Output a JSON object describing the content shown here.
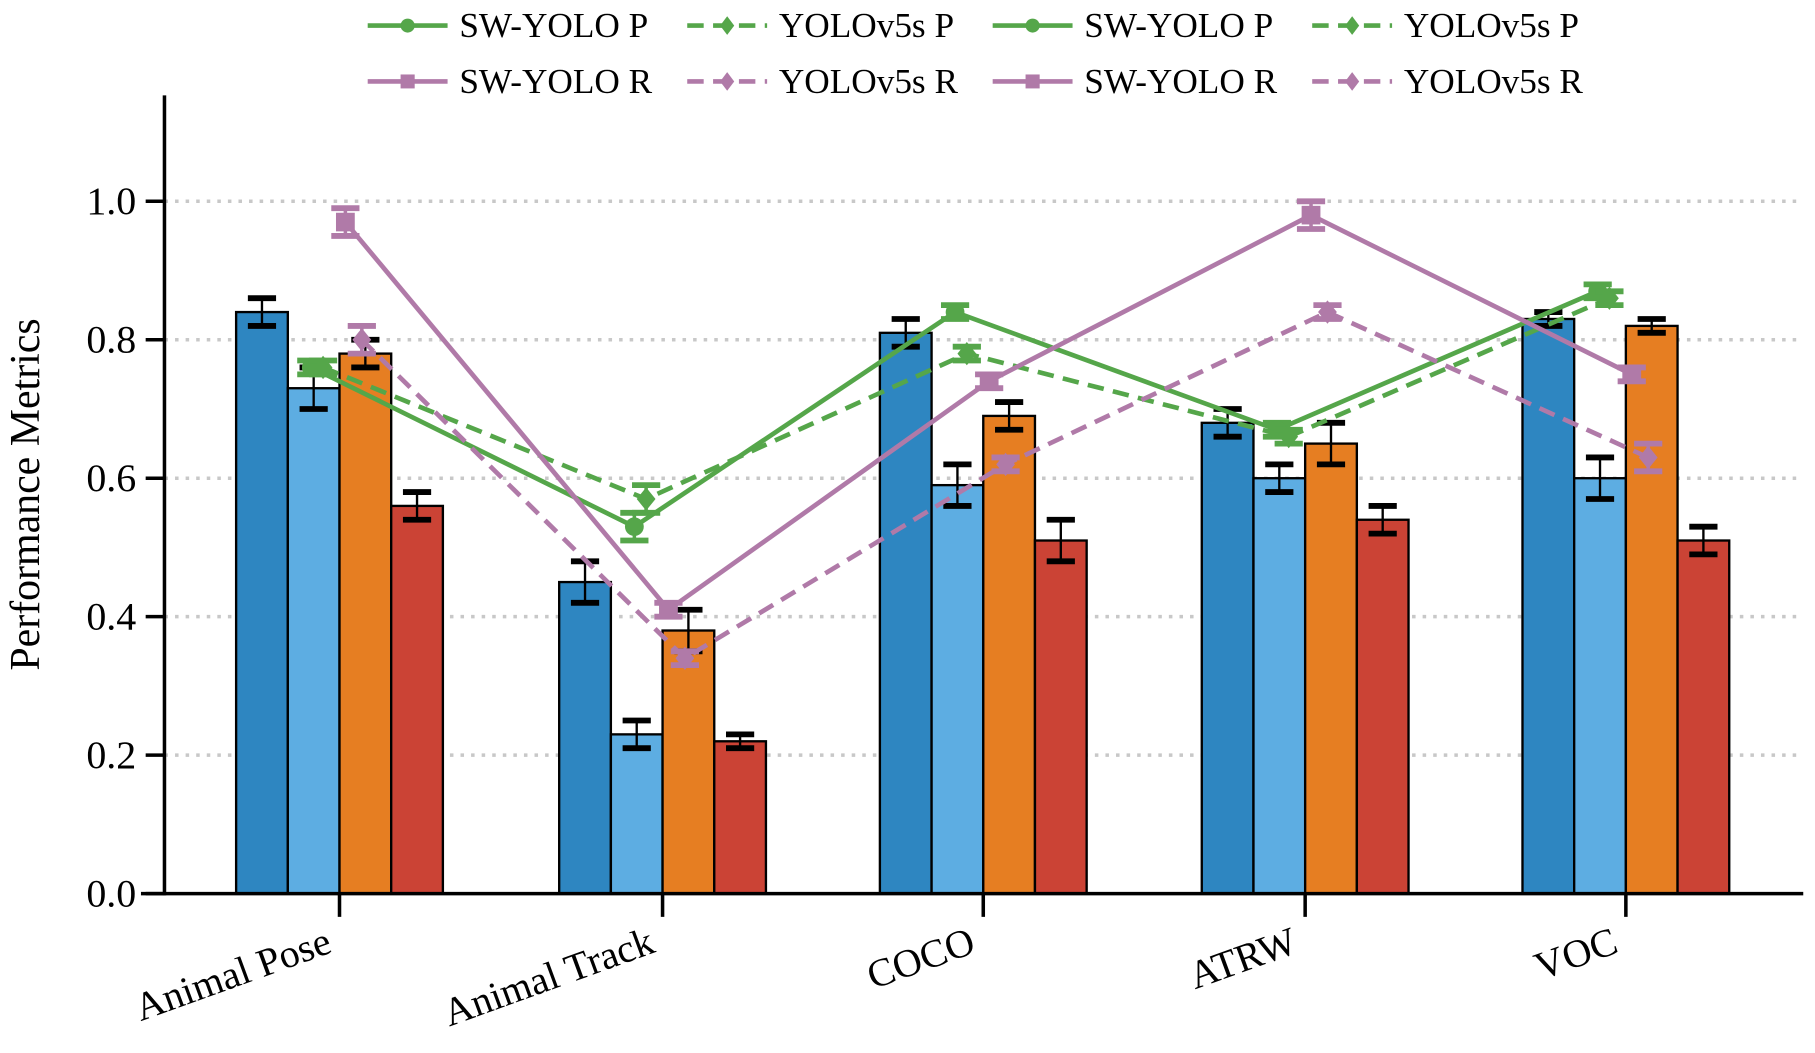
{
  "chart_data": {
    "type": "bar",
    "title": "",
    "xlabel": "",
    "ylabel": "Performance Metrics",
    "ylim": [
      0,
      1.1
    ],
    "yticks": [
      "0.0",
      "0.2",
      "0.4",
      "0.6",
      "0.8",
      "1.0"
    ],
    "grid": "horizontal dotted",
    "legend_placement": "top",
    "categories": [
      "Animal Pose",
      "Animal Track",
      "COCO",
      "ATRW",
      "VOC"
    ],
    "bar_series": [
      {
        "color": "#2e86c1",
        "values": [
          0.84,
          0.45,
          0.81,
          0.68,
          0.83
        ],
        "errors": [
          0.02,
          0.03,
          0.02,
          0.02,
          0.01
        ]
      },
      {
        "color": "#5dade2",
        "values": [
          0.73,
          0.23,
          0.59,
          0.6,
          0.6
        ],
        "errors": [
          0.03,
          0.02,
          0.03,
          0.02,
          0.03
        ]
      },
      {
        "color": "#e67e22",
        "values": [
          0.78,
          0.38,
          0.69,
          0.65,
          0.82
        ],
        "errors": [
          0.02,
          0.03,
          0.02,
          0.03,
          0.01
        ]
      },
      {
        "color": "#cb4335",
        "values": [
          0.56,
          0.22,
          0.51,
          0.54,
          0.51
        ],
        "errors": [
          0.02,
          0.01,
          0.03,
          0.02,
          0.02
        ]
      }
    ],
    "line_series": [
      {
        "name": "SW-YOLO P",
        "color": "#55a64a",
        "dash": false,
        "marker": "circle",
        "values": [
          0.76,
          0.53,
          0.84,
          0.67,
          0.87
        ],
        "errors": [
          0.01,
          0.02,
          0.01,
          0.01,
          0.01
        ]
      },
      {
        "name": "YOLOv5s P",
        "color": "#55a64a",
        "dash": true,
        "marker": "diamond",
        "values": [
          0.76,
          0.57,
          0.78,
          0.66,
          0.86
        ],
        "errors": [
          0.01,
          0.02,
          0.01,
          0.01,
          0.01
        ]
      },
      {
        "name": "SW-YOLO R",
        "color": "#b07aa8",
        "dash": false,
        "marker": "square",
        "values": [
          0.97,
          0.41,
          0.74,
          0.98,
          0.75
        ],
        "errors": [
          0.02,
          0.01,
          0.01,
          0.02,
          0.01
        ]
      },
      {
        "name": "YOLOv5s R",
        "color": "#b07aa8",
        "dash": true,
        "marker": "diamond",
        "values": [
          0.8,
          0.34,
          0.62,
          0.84,
          0.63
        ],
        "errors": [
          0.02,
          0.01,
          0.01,
          0.01,
          0.02
        ]
      }
    ],
    "legend": [
      [
        "SW-YOLO P",
        "YOLOv5s P",
        "SW-YOLO P",
        "YOLOv5s P"
      ],
      [
        "SW-YOLO R",
        "YOLOv5s R",
        "SW-YOLO R",
        "YOLOv5s R"
      ]
    ]
  }
}
